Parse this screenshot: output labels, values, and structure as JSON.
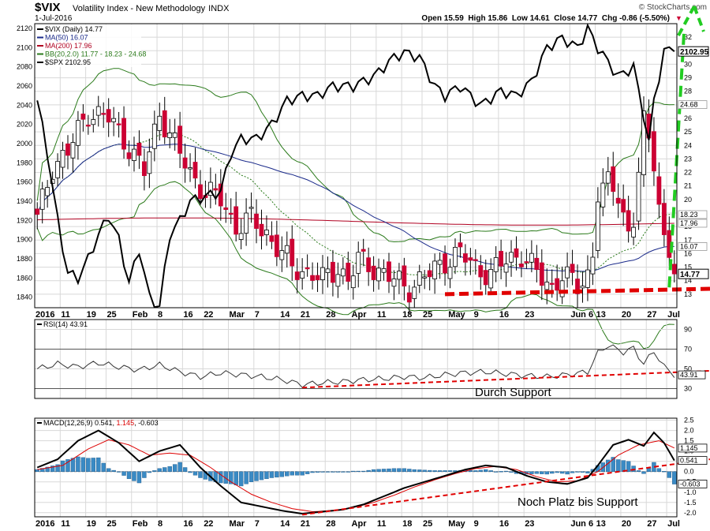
{
  "header": {
    "symbol": "$VIX",
    "name": "Volatility Index - New Methodology",
    "exchange": "INDX",
    "date": "1-Jul-2016",
    "ohlc": "Open 15.59  High 15.86  Low 14.61  Close 14.77  Chg -0.86 (-5.50%)",
    "watermark": "© StockCharts.com"
  },
  "colors": {
    "up": "#ffffff",
    "down": "#cc0033",
    "spx": "#000000",
    "ma50": "#1a2a8a",
    "ma200": "#b00020",
    "bb": "#2a7a1a",
    "rsi": "#333333",
    "macd": "#000000",
    "signal": "#dd0000",
    "hist": "#3a8ac4",
    "annot": "#e00000",
    "arrow": "#22cc22"
  },
  "chart_data": [
    {
      "type": "candlestick",
      "title": "$VIX (Daily) 14.77",
      "legend": [
        {
          "label": "$VIX (Daily) 14.77",
          "color": "#000000"
        },
        {
          "label": "MA(50) 16.07",
          "color": "#1a2a8a"
        },
        {
          "label": "MA(200) 17.96",
          "color": "#b00020"
        },
        {
          "label": "BB(20,2.0) 11.77 - 18.23 - 24.68",
          "color": "#2a7a1a"
        },
        {
          "label": "$SPX 2102.95",
          "color": "#000000"
        }
      ],
      "x_labels": [
        "2016",
        "11",
        "19",
        "25",
        "Feb",
        "8",
        "16",
        "22",
        "Mar",
        "7",
        "14",
        "21",
        "28",
        "Apr",
        "11",
        "18",
        "25",
        "May",
        "9",
        "16",
        "23",
        "Jun 6",
        "13",
        "20",
        "27",
        "Jul"
      ],
      "x_label_index": [
        0,
        5,
        10,
        14,
        19,
        24,
        29,
        33,
        38,
        43,
        48,
        52,
        57,
        62,
        67,
        72,
        76,
        81,
        86,
        91,
        96,
        105,
        110,
        115,
        120,
        124
      ],
      "vix_ylim": [
        12,
        33
      ],
      "vix_ticks": [
        13,
        14,
        15,
        16,
        17,
        18,
        19,
        20,
        21,
        22,
        23,
        24,
        25,
        26,
        27,
        28,
        29,
        30,
        31,
        32
      ],
      "spx_ylim": [
        1829,
        2125
      ],
      "spx_ticks": [
        1840,
        1860,
        1880,
        1900,
        1920,
        1940,
        1960,
        1980,
        2000,
        2020,
        2040,
        2060,
        2080,
        2100,
        2120
      ],
      "vix_anchors": [
        [
          0,
          18.5
        ],
        [
          3,
          22.5
        ],
        [
          6,
          23.5
        ],
        [
          10,
          26.5
        ],
        [
          14,
          26.0
        ],
        [
          17,
          24.5
        ],
        [
          21,
          22.0
        ],
        [
          24,
          26.5
        ],
        [
          27,
          24.0
        ],
        [
          30,
          22.0
        ],
        [
          33,
          20.5
        ],
        [
          36,
          20.0
        ],
        [
          39,
          18.0
        ],
        [
          42,
          18.5
        ],
        [
          45,
          17.5
        ],
        [
          48,
          16.0
        ],
        [
          50,
          15.0
        ],
        [
          54,
          14.5
        ],
        [
          56,
          14.0
        ],
        [
          59,
          15.0
        ],
        [
          61,
          14.0
        ],
        [
          63,
          15.5
        ],
        [
          66,
          15.0
        ],
        [
          70,
          14.0
        ],
        [
          73,
          13.5
        ],
        [
          77,
          14.5
        ],
        [
          80,
          15.5
        ],
        [
          83,
          16.0
        ],
        [
          86,
          15.0
        ],
        [
          89,
          14.5
        ],
        [
          92,
          15.5
        ],
        [
          95,
          16.0
        ],
        [
          98,
          14.5
        ],
        [
          101,
          13.5
        ],
        [
          103,
          14.5
        ],
        [
          106,
          13.5
        ],
        [
          108,
          14.5
        ],
        [
          109,
          16.0
        ],
        [
          110,
          20.5
        ],
        [
          112,
          21.0
        ],
        [
          114,
          20.5
        ],
        [
          116,
          17.5
        ],
        [
          117,
          18.5
        ],
        [
          119,
          25.5
        ],
        [
          121,
          23.0
        ],
        [
          123,
          17.0
        ],
        [
          125,
          14.8
        ]
      ],
      "spx_anchors": [
        [
          0,
          2045
        ],
        [
          2,
          1990
        ],
        [
          4,
          1920
        ],
        [
          6,
          1865
        ],
        [
          8,
          1860
        ],
        [
          10,
          1880
        ],
        [
          12,
          1905
        ],
        [
          14,
          1925
        ],
        [
          16,
          1900
        ],
        [
          18,
          1855
        ],
        [
          20,
          1890
        ],
        [
          22,
          1840
        ],
        [
          24,
          1830
        ],
        [
          26,
          1905
        ],
        [
          28,
          1920
        ],
        [
          30,
          1940
        ],
        [
          33,
          1945
        ],
        [
          36,
          1950
        ],
        [
          38,
          1990
        ],
        [
          40,
          2005
        ],
        [
          43,
          2005
        ],
        [
          46,
          2020
        ],
        [
          49,
          2045
        ],
        [
          52,
          2050
        ],
        [
          55,
          2050
        ],
        [
          58,
          2060
        ],
        [
          62,
          2060
        ],
        [
          66,
          2070
        ],
        [
          70,
          2090
        ],
        [
          72,
          2095
        ],
        [
          75,
          2090
        ],
        [
          78,
          2060
        ],
        [
          80,
          2050
        ],
        [
          83,
          2060
        ],
        [
          87,
          2040
        ],
        [
          91,
          2055
        ],
        [
          94,
          2050
        ],
        [
          97,
          2065
        ],
        [
          100,
          2100
        ],
        [
          103,
          2110
        ],
        [
          106,
          2100
        ],
        [
          108,
          2120
        ],
        [
          110,
          2100
        ],
        [
          112,
          2085
        ],
        [
          114,
          2070
        ],
        [
          117,
          2080
        ],
        [
          119,
          2030
        ],
        [
          120,
          2000
        ],
        [
          121,
          2045
        ],
        [
          122,
          2070
        ],
        [
          123,
          2095
        ],
        [
          125,
          2102
        ]
      ],
      "annotations": [
        {
          "label": "support line (red dashed)",
          "from": [
            80,
            13.0
          ],
          "to": [
            126,
            13.4
          ]
        },
        {
          "label": "green arrow",
          "from": [
            124,
            15.5
          ],
          "to": [
            126,
            32.5
          ]
        }
      ]
    },
    {
      "type": "line",
      "title": "RSI(14) 43.91",
      "ylim": [
        20,
        100
      ],
      "ticks": [
        30,
        50,
        70,
        90
      ],
      "levels": [
        30,
        70
      ],
      "values_anchors": [
        [
          0,
          50
        ],
        [
          4,
          55
        ],
        [
          8,
          52
        ],
        [
          12,
          56
        ],
        [
          16,
          52
        ],
        [
          20,
          49
        ],
        [
          24,
          54
        ],
        [
          28,
          47
        ],
        [
          32,
          42
        ],
        [
          36,
          46
        ],
        [
          40,
          44
        ],
        [
          44,
          42
        ],
        [
          48,
          39
        ],
        [
          52,
          34
        ],
        [
          56,
          36
        ],
        [
          60,
          37
        ],
        [
          64,
          39
        ],
        [
          68,
          40
        ],
        [
          72,
          42
        ],
        [
          76,
          41
        ],
        [
          80,
          44
        ],
        [
          84,
          46
        ],
        [
          88,
          47
        ],
        [
          92,
          45
        ],
        [
          96,
          43
        ],
        [
          100,
          42
        ],
        [
          104,
          44
        ],
        [
          108,
          47
        ],
        [
          110,
          66
        ],
        [
          112,
          74
        ],
        [
          115,
          67
        ],
        [
          117,
          71
        ],
        [
          119,
          55
        ],
        [
          121,
          68
        ],
        [
          123,
          52
        ],
        [
          125,
          44
        ]
      ],
      "last_value": "43.91",
      "annotation": "Durch Support"
    },
    {
      "type": "line",
      "title": "MACD(12,26,9) 0.541, 1.145, -0.603",
      "legend_parts": [
        "MACD(12,26,9) 0.541, ",
        "1.145",
        ", -0.603"
      ],
      "ylim": [
        -2.2,
        2.6
      ],
      "ticks": [
        -2.0,
        -1.5,
        -1.0,
        -0.5,
        0.0,
        0.5,
        1.0,
        1.5,
        2.0,
        2.5
      ],
      "macd_anchors": [
        [
          0,
          0.2
        ],
        [
          4,
          0.6
        ],
        [
          8,
          1.5
        ],
        [
          12,
          2.0
        ],
        [
          16,
          1.4
        ],
        [
          20,
          0.5
        ],
        [
          24,
          1.0
        ],
        [
          28,
          1.3
        ],
        [
          32,
          0.2
        ],
        [
          36,
          -0.7
        ],
        [
          40,
          -1.5
        ],
        [
          44,
          -1.7
        ],
        [
          48,
          -1.9
        ],
        [
          52,
          -2.05
        ],
        [
          56,
          -1.95
        ],
        [
          60,
          -1.85
        ],
        [
          64,
          -1.6
        ],
        [
          68,
          -1.2
        ],
        [
          72,
          -0.8
        ],
        [
          76,
          -0.5
        ],
        [
          80,
          -0.2
        ],
        [
          84,
          0.1
        ],
        [
          88,
          0.3
        ],
        [
          92,
          0.2
        ],
        [
          96,
          -0.2
        ],
        [
          100,
          -0.5
        ],
        [
          104,
          -0.6
        ],
        [
          108,
          -0.3
        ],
        [
          110,
          0.3
        ],
        [
          113,
          1.3
        ],
        [
          116,
          1.55
        ],
        [
          119,
          1.25
        ],
        [
          121,
          1.9
        ],
        [
          123,
          1.4
        ],
        [
          125,
          0.54
        ]
      ],
      "signal_anchors": [
        [
          0,
          0.1
        ],
        [
          5,
          0.3
        ],
        [
          10,
          1.1
        ],
        [
          14,
          1.55
        ],
        [
          18,
          1.3
        ],
        [
          22,
          0.8
        ],
        [
          26,
          0.9
        ],
        [
          30,
          0.8
        ],
        [
          34,
          0.2
        ],
        [
          38,
          -0.5
        ],
        [
          42,
          -1.1
        ],
        [
          46,
          -1.5
        ],
        [
          50,
          -1.8
        ],
        [
          54,
          -1.95
        ],
        [
          58,
          -1.9
        ],
        [
          62,
          -1.75
        ],
        [
          66,
          -1.5
        ],
        [
          70,
          -1.15
        ],
        [
          74,
          -0.75
        ],
        [
          78,
          -0.4
        ],
        [
          82,
          -0.1
        ],
        [
          86,
          0.15
        ],
        [
          90,
          0.25
        ],
        [
          94,
          0.1
        ],
        [
          98,
          -0.25
        ],
        [
          102,
          -0.5
        ],
        [
          106,
          -0.45
        ],
        [
          110,
          0.0
        ],
        [
          114,
          0.8
        ],
        [
          118,
          1.3
        ],
        [
          122,
          1.5
        ],
        [
          125,
          1.15
        ]
      ],
      "values": [
        "0.541",
        "1.145",
        "-0.603"
      ],
      "annotation": "Noch Platz bis Support"
    }
  ]
}
